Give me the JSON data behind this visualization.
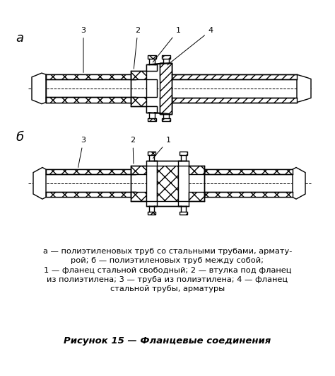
{
  "title": "Рисунок 15 — Фланцевые соединения",
  "caption_lines": [
    "а — полиэтиленовых труб со стальными трубами, армату-",
    "рой; б — полиэтиленовых труб между собой;",
    "1 — фланец стальной свободный; 2 — втулка под фланец",
    "из полиэтилена; 3 — труба из полиэтилена; 4 — фланец",
    "стальной трубы, арматуры"
  ],
  "label_a": "а",
  "label_b": "б",
  "bg_color": "#ffffff",
  "lw": 1.0,
  "fig_width": 4.74,
  "fig_height": 5.31,
  "dpi": 100
}
